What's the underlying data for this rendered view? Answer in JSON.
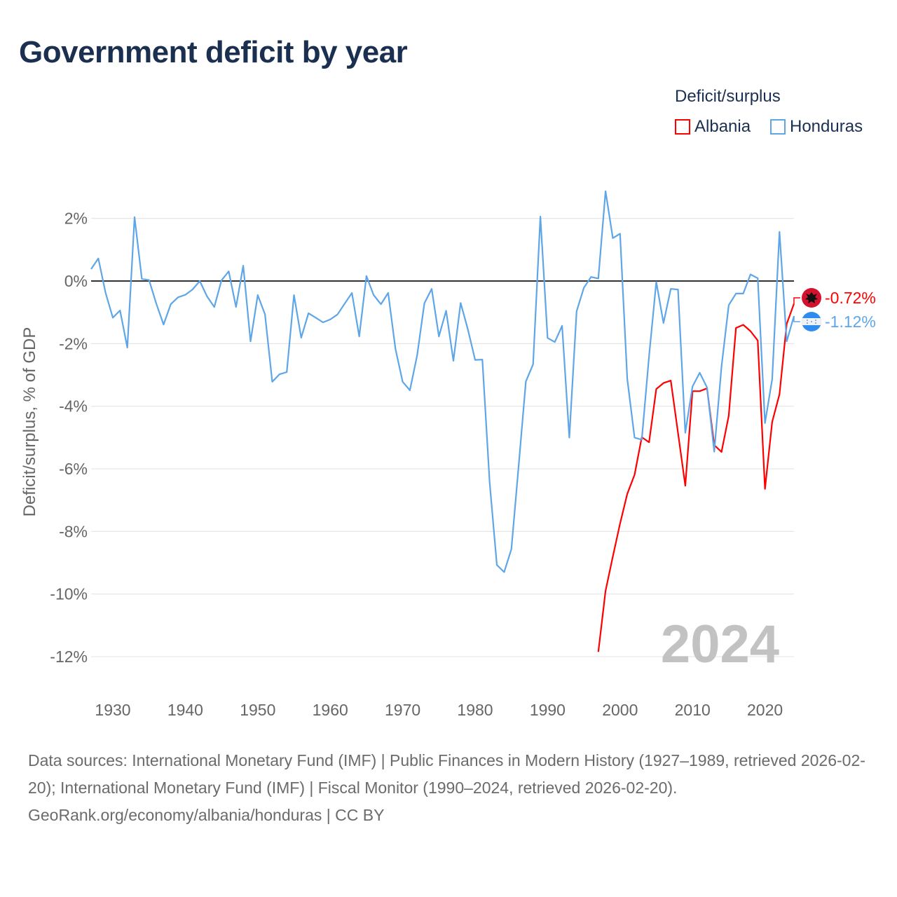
{
  "title": "Government deficit by year",
  "legend": {
    "title": "Deficit/surplus",
    "items": [
      {
        "label": "Albania",
        "color": "#ff0000"
      },
      {
        "label": "Honduras",
        "color": "#5ea6e8"
      }
    ]
  },
  "footer": {
    "sources": "Data sources: International Monetary Fund (IMF) | Public Finances in Modern History (1927–1989, retrieved 2026-02-20); International Monetary Fund (IMF) | Fiscal Monitor (1990–2024, retrieved 2026-02-20).",
    "credit": "GeoRank.org/economy/albania/honduras | CC BY"
  },
  "chart_data": {
    "type": "line",
    "title": "Government deficit by year",
    "xlabel": "",
    "ylabel": "Deficit/surplus, % of GDP",
    "xlim": [
      1927,
      2024
    ],
    "ylim": [
      -12,
      2
    ],
    "x_ticks": [
      "1930",
      "1940",
      "1950",
      "1960",
      "1970",
      "1980",
      "1990",
      "2000",
      "2010",
      "2020"
    ],
    "y_ticks": [
      {
        "v": 2,
        "label": "2%"
      },
      {
        "v": 0,
        "label": "0%"
      },
      {
        "v": -2,
        "label": "-2%"
      },
      {
        "v": -4,
        "label": "-4%"
      },
      {
        "v": -6,
        "label": "-6%"
      },
      {
        "v": -8,
        "label": "-8%"
      },
      {
        "v": -10,
        "label": "-10%"
      },
      {
        "v": -12,
        "label": "-12%"
      }
    ],
    "year_watermark": "2024",
    "legend_position": "top-right",
    "series": [
      {
        "name": "Albania",
        "color": "#ff0000",
        "start_year": 1997,
        "end_label": "-0.72%",
        "values": [
          -11.85,
          -9.9,
          -8.8,
          -7.75,
          -6.8,
          -6.19,
          -4.99,
          -5.15,
          -3.45,
          -3.26,
          -3.18,
          -4.85,
          -6.54,
          -3.52,
          -3.52,
          -3.43,
          -5.24,
          -5.46,
          -4.3,
          -1.5,
          -1.4,
          -1.6,
          -1.9,
          -6.64,
          -4.5,
          -3.62,
          -1.37,
          -0.72
        ]
      },
      {
        "name": "Honduras",
        "color": "#5ea6e8",
        "start_year": 1927,
        "end_label": "-1.12%",
        "values": [
          0.38,
          0.72,
          -0.38,
          -1.17,
          -0.94,
          -2.13,
          2.04,
          0.07,
          0.03,
          -0.72,
          -1.39,
          -0.74,
          -0.52,
          -0.44,
          -0.27,
          0,
          -0.49,
          -0.83,
          0.02,
          0.31,
          -0.83,
          0.49,
          -1.93,
          -0.45,
          -1.06,
          -3.22,
          -2.98,
          -2.91,
          -0.45,
          -1.81,
          -1.03,
          -1.17,
          -1.32,
          -1.23,
          -1.07,
          -0.72,
          -0.38,
          -1.77,
          0.16,
          -0.45,
          -0.74,
          -0.38,
          -2.17,
          -3.22,
          -3.49,
          -2.37,
          -0.71,
          -0.25,
          -1.77,
          -0.95,
          -2.55,
          -0.7,
          -1.55,
          -2.52,
          -2.51,
          -6.43,
          -9.07,
          -9.3,
          -8.57,
          -5.93,
          -3.21,
          -2.66,
          2.06,
          -1.82,
          -1.95,
          -1.43,
          -5.0,
          -0.97,
          -0.22,
          0.13,
          0.08,
          2.87,
          1.37,
          1.51,
          -3.13,
          -5.0,
          -5.07,
          -2.4,
          -0.03,
          -1.34,
          -0.25,
          -0.27,
          -4.85,
          -3.37,
          -2.93,
          -3.4,
          -5.45,
          -2.73,
          -0.77,
          -0.4,
          -0.4,
          0.21,
          0.09,
          -4.54,
          -3.13,
          1.57,
          -1.93,
          -1.12
        ]
      }
    ]
  }
}
